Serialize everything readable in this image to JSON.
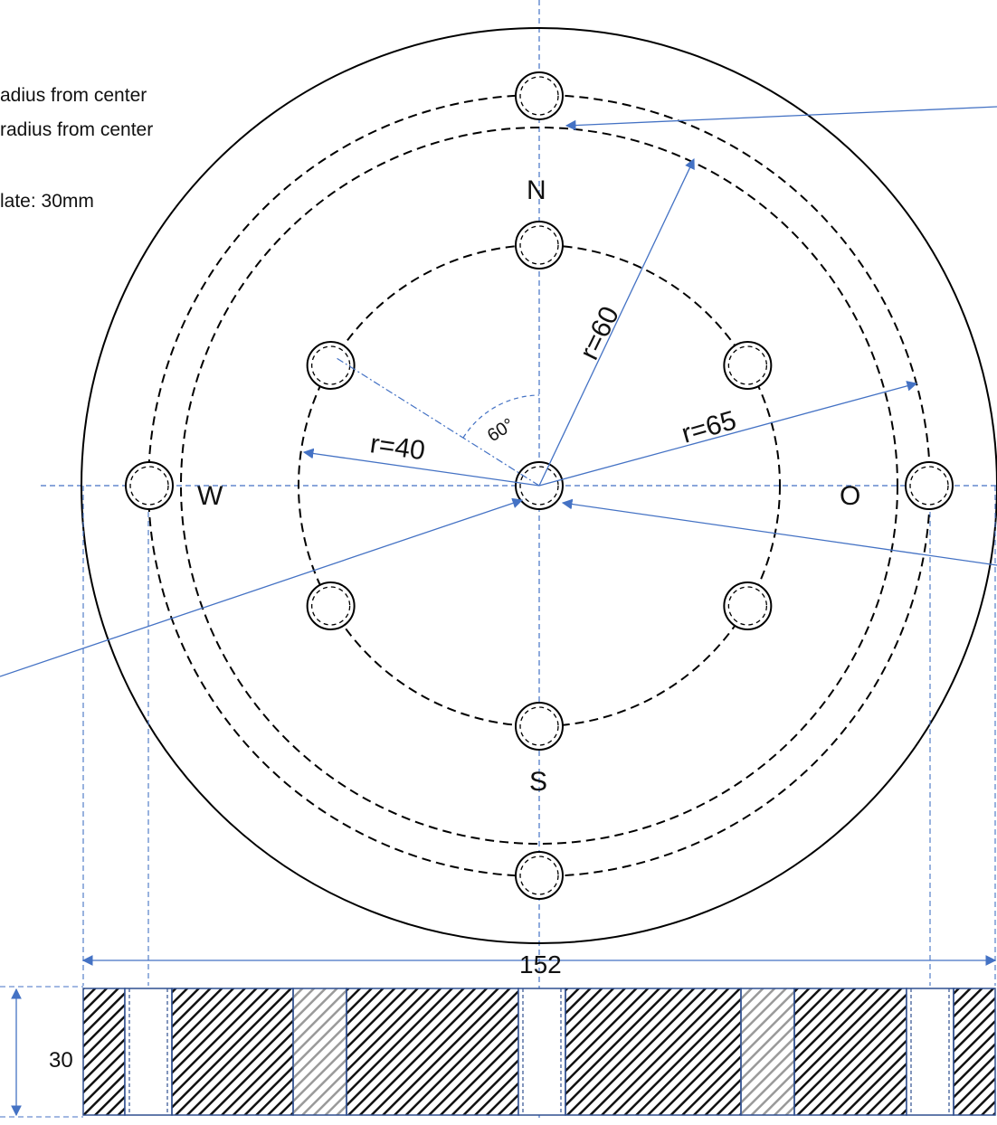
{
  "notes": {
    "line1": "adius from center",
    "line2": "radius from center",
    "line3": "late: 30mm"
  },
  "compass": {
    "north": "N",
    "south": "S",
    "west": "W",
    "east": "O"
  },
  "dimensions": {
    "r_outer_ring": "r=60",
    "r_outer_label": "r=65",
    "r_inner": "r=40",
    "angle": "60°",
    "width": "152",
    "thickness": "30"
  },
  "colors": {
    "line": "#000000",
    "dimension_line": "#4472c4",
    "hatch_dark": "#111111",
    "hatch_light": "#9a9a9a",
    "plate_border": "#2f4f8f"
  }
}
